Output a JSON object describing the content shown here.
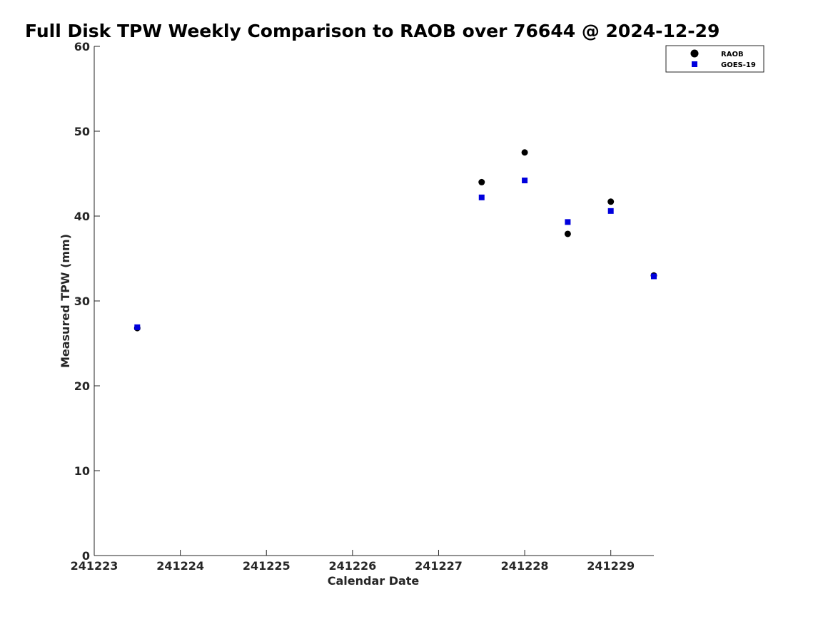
{
  "chart_data": {
    "type": "scatter",
    "title": "Full Disk TPW Weekly Comparison to RAOB over 76644 @ 2024-12-29",
    "xlabel": "Calendar Date",
    "ylabel": "Measured TPW (mm)",
    "x_ticks": [
      {
        "value": 241223,
        "label": "241223"
      },
      {
        "value": 241224,
        "label": "241224"
      },
      {
        "value": 241225,
        "label": "241225"
      },
      {
        "value": 241226,
        "label": "241226"
      },
      {
        "value": 241227,
        "label": "241227"
      },
      {
        "value": 241228,
        "label": "241228"
      },
      {
        "value": 241229,
        "label": "241229"
      }
    ],
    "y_ticks": [
      0,
      10,
      20,
      30,
      40,
      50,
      60
    ],
    "xlim": [
      241223,
      241229.5
    ],
    "ylim": [
      0,
      60
    ],
    "grid": false,
    "legend_position": "top-right",
    "series": [
      {
        "name": "RAOB",
        "marker": "circle",
        "color": "#000000",
        "points": [
          {
            "x": 241223.5,
            "y": 26.8
          },
          {
            "x": 241227.5,
            "y": 44.0
          },
          {
            "x": 241228.0,
            "y": 47.5
          },
          {
            "x": 241228.5,
            "y": 37.9
          },
          {
            "x": 241229.0,
            "y": 41.7
          },
          {
            "x": 241229.5,
            "y": 33.0
          }
        ]
      },
      {
        "name": "GOES-19",
        "marker": "square",
        "color": "#0000dd",
        "points": [
          {
            "x": 241223.5,
            "y": 26.9
          },
          {
            "x": 241227.5,
            "y": 42.2
          },
          {
            "x": 241228.0,
            "y": 44.2
          },
          {
            "x": 241228.5,
            "y": 39.3
          },
          {
            "x": 241229.0,
            "y": 40.6
          },
          {
            "x": 241229.5,
            "y": 32.9
          }
        ]
      }
    ]
  }
}
